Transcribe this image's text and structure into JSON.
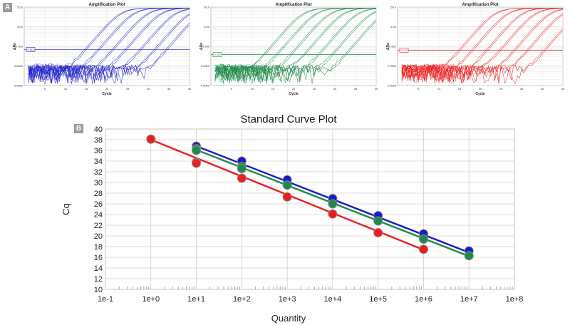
{
  "panel_a_label": "A",
  "panel_b_label": "B",
  "chart_data": [
    {
      "type": "line",
      "title": "Amplification Plot",
      "xlabel": "Cycle",
      "ylabel": "ΔRn",
      "xlim": [
        0,
        40
      ],
      "xticks": [
        "5",
        "10",
        "15",
        "20",
        "25",
        "30",
        "35",
        "40"
      ],
      "yticks": [
        "0.0050",
        "0.0500",
        "0.500",
        "5.00",
        "50.0"
      ],
      "color": "#2222cc",
      "threshold_label": "0.345",
      "ct_values": [
        17.2,
        20.4,
        23.8,
        27.0,
        30.5,
        34.0,
        36.8
      ]
    },
    {
      "type": "line",
      "title": "Amplification Plot",
      "xlabel": "Cycle",
      "ylabel": "ΔRn",
      "xlim": [
        0,
        40
      ],
      "xticks": [
        "5",
        "10",
        "15",
        "20",
        "25",
        "30",
        "35",
        "40"
      ],
      "yticks": [
        "0.0050",
        "0.0500",
        "0.500",
        "5.00",
        "50.0"
      ],
      "color": "#1e8a4a",
      "threshold_label": "0.189",
      "ct_values": [
        16.3,
        19.4,
        22.8,
        26.0,
        29.5,
        32.8,
        36.0
      ]
    },
    {
      "type": "line",
      "title": "Amplification Plot",
      "xlabel": "Cycle",
      "ylabel": "ΔRn",
      "xlim": [
        0,
        40
      ],
      "xticks": [
        "5",
        "10",
        "15",
        "20",
        "25",
        "30",
        "35",
        "40"
      ],
      "yticks": [
        "0.0050",
        "0.0500",
        "0.500",
        "5.00",
        "50.0"
      ],
      "color": "#ee2222",
      "threshold_label": "0.315",
      "ct_values": [
        17.5,
        20.6,
        24.1,
        27.3,
        30.8,
        34.0,
        38.1
      ]
    },
    {
      "type": "scatter",
      "title": "Standard Curve Plot",
      "xlabel": "Quantity",
      "ylabel": "Cq",
      "x_scale": "log10",
      "xlim": [
        -1,
        8
      ],
      "ylim": [
        10,
        40
      ],
      "x_tick_labels": [
        "1e-1",
        "1e+0",
        "1e+1",
        "1e+2",
        "1e+3",
        "1e+4",
        "1e+5",
        "1e+6",
        "1e+7",
        "1e+8"
      ],
      "y_tick_labels": [
        "10",
        "12",
        "14",
        "16",
        "18",
        "20",
        "22",
        "24",
        "26",
        "28",
        "30",
        "32",
        "34",
        "36",
        "38",
        "40"
      ],
      "series": [
        {
          "name": "blue",
          "color": "#1a1acc",
          "x": [
            1,
            2,
            3,
            4,
            5,
            6,
            7
          ],
          "y": [
            36.8,
            34.0,
            30.5,
            27.0,
            23.8,
            20.4,
            17.2
          ],
          "fit_start": [
            1,
            36.8
          ],
          "fit_end": [
            7,
            16.9
          ]
        },
        {
          "name": "green",
          "color": "#1e8a4a",
          "x": [
            1,
            1,
            2,
            2,
            3,
            4,
            5,
            6,
            7
          ],
          "y": [
            36.3,
            36.0,
            33.0,
            32.6,
            29.5,
            26.0,
            22.8,
            19.4,
            16.3
          ],
          "fit_start": [
            1,
            36.1
          ],
          "fit_end": [
            7,
            16.2
          ]
        },
        {
          "name": "red",
          "color": "#ee1c1c",
          "x": [
            0,
            1,
            1,
            2,
            3,
            4,
            5,
            6
          ],
          "y": [
            38.1,
            33.8,
            33.6,
            30.8,
            27.3,
            24.1,
            20.6,
            17.5
          ],
          "fit_start": [
            0,
            38.0
          ],
          "fit_end": [
            6,
            17.4
          ]
        }
      ]
    }
  ]
}
